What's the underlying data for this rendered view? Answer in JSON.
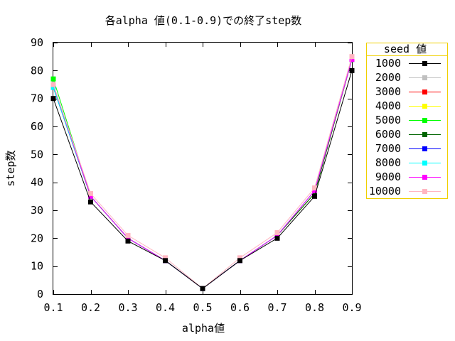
{
  "chart_data": {
    "type": "line",
    "title": "各alpha 値(0.1-0.9)での終了step数",
    "xlabel": "alpha値",
    "ylabel": "step数",
    "x": [
      0.1,
      0.2,
      0.3,
      0.4,
      0.5,
      0.6,
      0.7,
      0.8,
      0.9
    ],
    "x_tick_labels": [
      "0.1",
      "0.2",
      "0.3",
      "0.4",
      "0.5",
      "0.6",
      "0.7",
      "0.8",
      "0.9"
    ],
    "y_ticks": [
      0,
      10,
      20,
      30,
      40,
      50,
      60,
      70,
      80,
      90
    ],
    "xlim": [
      0.1,
      0.9
    ],
    "ylim": [
      0,
      90
    ],
    "grid": false,
    "legend": {
      "title": "seed 値",
      "position": "right-outside-top",
      "border_color": "#f0d000"
    },
    "series": [
      {
        "name": "1000",
        "color": "#000000",
        "values": [
          70,
          33,
          19,
          12,
          2,
          12,
          20,
          35,
          80
        ]
      },
      {
        "name": "2000",
        "color": "#c0c0c0",
        "values": [
          74,
          35,
          20,
          12,
          2,
          12,
          21,
          36,
          84
        ]
      },
      {
        "name": "3000",
        "color": "#ff0000",
        "values": [
          74,
          35,
          20,
          12,
          2,
          12,
          21,
          36,
          84
        ]
      },
      {
        "name": "4000",
        "color": "#ffff00",
        "values": [
          75,
          35,
          20,
          12,
          2,
          12,
          21,
          36,
          84
        ]
      },
      {
        "name": "5000",
        "color": "#00ff00",
        "values": [
          77,
          35,
          20,
          12,
          2,
          12,
          21,
          36,
          84
        ]
      },
      {
        "name": "6000",
        "color": "#006400",
        "values": [
          74,
          35,
          20,
          12,
          2,
          12,
          21,
          36,
          84
        ]
      },
      {
        "name": "7000",
        "color": "#0000ff",
        "values": [
          74,
          35,
          20,
          12,
          2,
          12,
          21,
          37,
          84
        ]
      },
      {
        "name": "8000",
        "color": "#00ffff",
        "values": [
          74,
          35,
          20,
          12,
          2,
          12,
          21,
          37,
          84
        ]
      },
      {
        "name": "9000",
        "color": "#ff00ff",
        "values": [
          75,
          35,
          20,
          12,
          2,
          12,
          21,
          37,
          84
        ]
      },
      {
        "name": "10000",
        "color": "#ffb6c1",
        "values": [
          75,
          36,
          21,
          13,
          2,
          13,
          22,
          38,
          85
        ]
      }
    ]
  }
}
